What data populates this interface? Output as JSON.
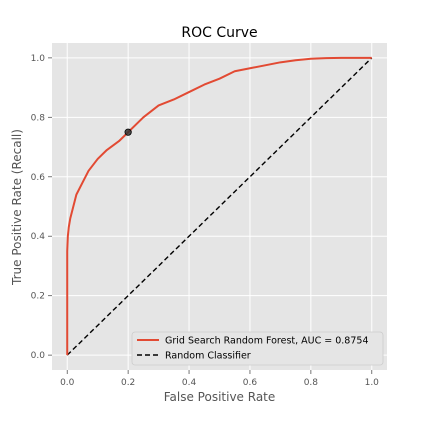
{
  "chart_data": {
    "type": "line",
    "title": "ROC Curve",
    "xlabel": "False Positive Rate",
    "ylabel": "True Positive Rate (Recall)",
    "xlim": [
      -0.05,
      1.05
    ],
    "ylim": [
      -0.05,
      1.05
    ],
    "x_ticks": [
      0.0,
      0.2,
      0.4,
      0.6,
      0.8,
      1.0
    ],
    "y_ticks": [
      0.0,
      0.2,
      0.4,
      0.6,
      0.8,
      1.0
    ],
    "x_tick_labels": [
      "0.0",
      "0.2",
      "0.4",
      "0.6",
      "0.8",
      "1.0"
    ],
    "y_tick_labels": [
      "0.0",
      "0.2",
      "0.4",
      "0.6",
      "0.8",
      "1.0"
    ],
    "grid": true,
    "legend_position": "bottom-right",
    "series": [
      {
        "name": "Grid Search Random Forest, AUC = 0.8754",
        "color": "#e24a33",
        "style": "solid",
        "x": [
          0.0,
          0.0,
          0.002,
          0.005,
          0.01,
          0.02,
          0.03,
          0.05,
          0.07,
          0.1,
          0.13,
          0.17,
          0.2,
          0.25,
          0.3,
          0.35,
          0.4,
          0.45,
          0.5,
          0.55,
          0.6,
          0.65,
          0.7,
          0.75,
          0.8,
          0.85,
          0.9,
          0.95,
          1.0
        ],
        "y": [
          0.0,
          0.35,
          0.4,
          0.43,
          0.46,
          0.5,
          0.54,
          0.58,
          0.62,
          0.66,
          0.69,
          0.72,
          0.75,
          0.8,
          0.84,
          0.86,
          0.885,
          0.91,
          0.93,
          0.955,
          0.965,
          0.975,
          0.985,
          0.992,
          0.997,
          0.999,
          1.0,
          1.0,
          1.0
        ]
      },
      {
        "name": "Random Classifier",
        "color": "#000000",
        "style": "dashed",
        "x": [
          0.0,
          1.0
        ],
        "y": [
          0.0,
          1.0
        ]
      }
    ],
    "marker": {
      "x": 0.2,
      "y": 0.75,
      "color": "#333333"
    }
  }
}
